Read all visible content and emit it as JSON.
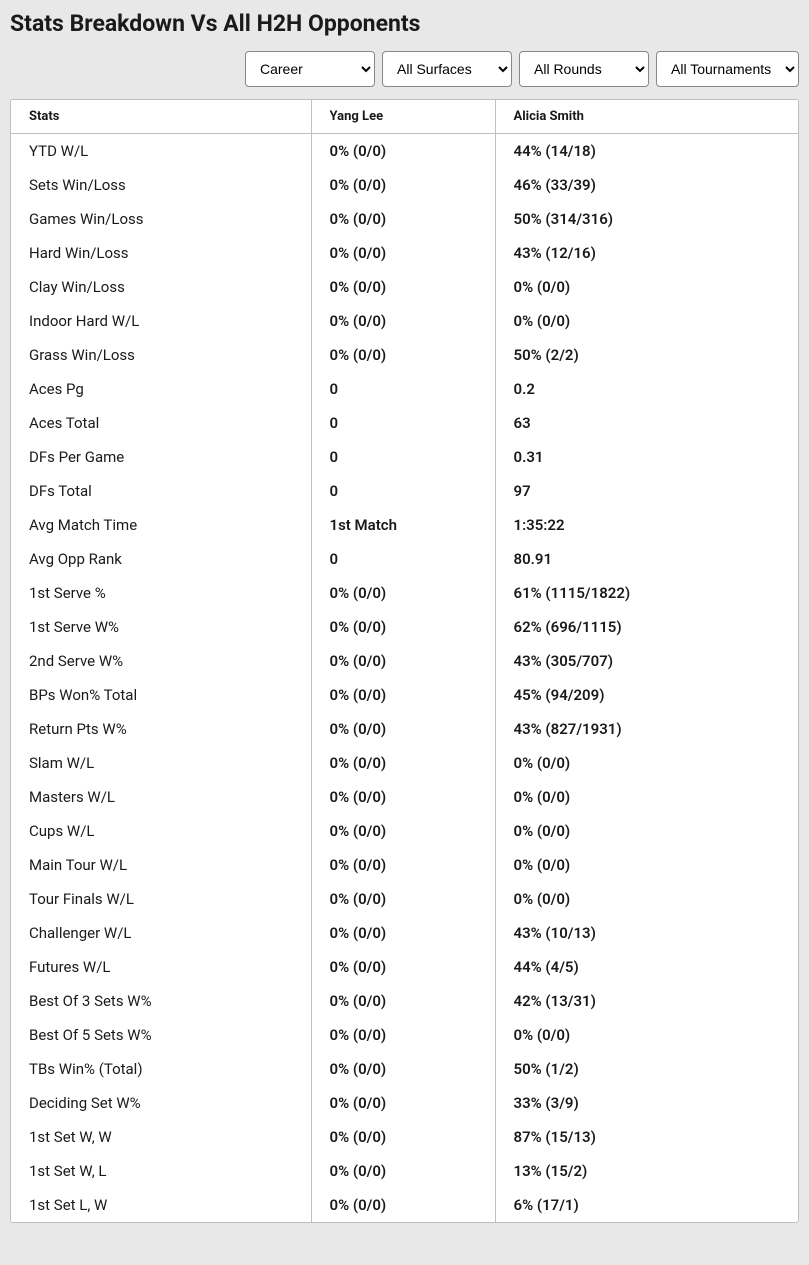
{
  "title": "Stats Breakdown Vs All H2H Opponents",
  "filters": {
    "period": "Career",
    "surface": "All Surfaces",
    "round": "All Rounds",
    "tournament": "All Tournaments"
  },
  "table": {
    "headers": {
      "stats": "Stats",
      "player1": "Yang Lee",
      "player2": "Alicia Smith"
    },
    "rows": [
      {
        "stat": "YTD W/L",
        "p1": "0% (0/0)",
        "p2": "44% (14/18)"
      },
      {
        "stat": "Sets Win/Loss",
        "p1": "0% (0/0)",
        "p2": "46% (33/39)"
      },
      {
        "stat": "Games Win/Loss",
        "p1": "0% (0/0)",
        "p2": "50% (314/316)"
      },
      {
        "stat": "Hard Win/Loss",
        "p1": "0% (0/0)",
        "p2": "43% (12/16)"
      },
      {
        "stat": "Clay Win/Loss",
        "p1": "0% (0/0)",
        "p2": "0% (0/0)"
      },
      {
        "stat": "Indoor Hard W/L",
        "p1": "0% (0/0)",
        "p2": "0% (0/0)"
      },
      {
        "stat": "Grass Win/Loss",
        "p1": "0% (0/0)",
        "p2": "50% (2/2)"
      },
      {
        "stat": "Aces Pg",
        "p1": "0",
        "p2": "0.2"
      },
      {
        "stat": "Aces Total",
        "p1": "0",
        "p2": "63"
      },
      {
        "stat": "DFs Per Game",
        "p1": "0",
        "p2": "0.31"
      },
      {
        "stat": "DFs Total",
        "p1": "0",
        "p2": "97"
      },
      {
        "stat": "Avg Match Time",
        "p1": "1st Match",
        "p2": "1:35:22"
      },
      {
        "stat": "Avg Opp Rank",
        "p1": "0",
        "p2": "80.91"
      },
      {
        "stat": "1st Serve %",
        "p1": "0% (0/0)",
        "p2": "61% (1115/1822)"
      },
      {
        "stat": "1st Serve W%",
        "p1": "0% (0/0)",
        "p2": "62% (696/1115)"
      },
      {
        "stat": "2nd Serve W%",
        "p1": "0% (0/0)",
        "p2": "43% (305/707)"
      },
      {
        "stat": "BPs Won% Total",
        "p1": "0% (0/0)",
        "p2": "45% (94/209)"
      },
      {
        "stat": "Return Pts W%",
        "p1": "0% (0/0)",
        "p2": "43% (827/1931)"
      },
      {
        "stat": "Slam W/L",
        "p1": "0% (0/0)",
        "p2": "0% (0/0)"
      },
      {
        "stat": "Masters W/L",
        "p1": "0% (0/0)",
        "p2": "0% (0/0)"
      },
      {
        "stat": "Cups W/L",
        "p1": "0% (0/0)",
        "p2": "0% (0/0)"
      },
      {
        "stat": "Main Tour W/L",
        "p1": "0% (0/0)",
        "p2": "0% (0/0)"
      },
      {
        "stat": "Tour Finals W/L",
        "p1": "0% (0/0)",
        "p2": "0% (0/0)"
      },
      {
        "stat": "Challenger W/L",
        "p1": "0% (0/0)",
        "p2": "43% (10/13)"
      },
      {
        "stat": "Futures W/L",
        "p1": "0% (0/0)",
        "p2": "44% (4/5)"
      },
      {
        "stat": "Best Of 3 Sets W%",
        "p1": "0% (0/0)",
        "p2": "42% (13/31)"
      },
      {
        "stat": "Best Of 5 Sets W%",
        "p1": "0% (0/0)",
        "p2": "0% (0/0)"
      },
      {
        "stat": "TBs Win% (Total)",
        "p1": "0% (0/0)",
        "p2": "50% (1/2)"
      },
      {
        "stat": "Deciding Set W%",
        "p1": "0% (0/0)",
        "p2": "33% (3/9)"
      },
      {
        "stat": "1st Set W, W",
        "p1": "0% (0/0)",
        "p2": "87% (15/13)"
      },
      {
        "stat": "1st Set W, L",
        "p1": "0% (0/0)",
        "p2": "13% (15/2)"
      },
      {
        "stat": "1st Set L, W",
        "p1": "0% (0/0)",
        "p2": "6% (17/1)"
      }
    ]
  }
}
